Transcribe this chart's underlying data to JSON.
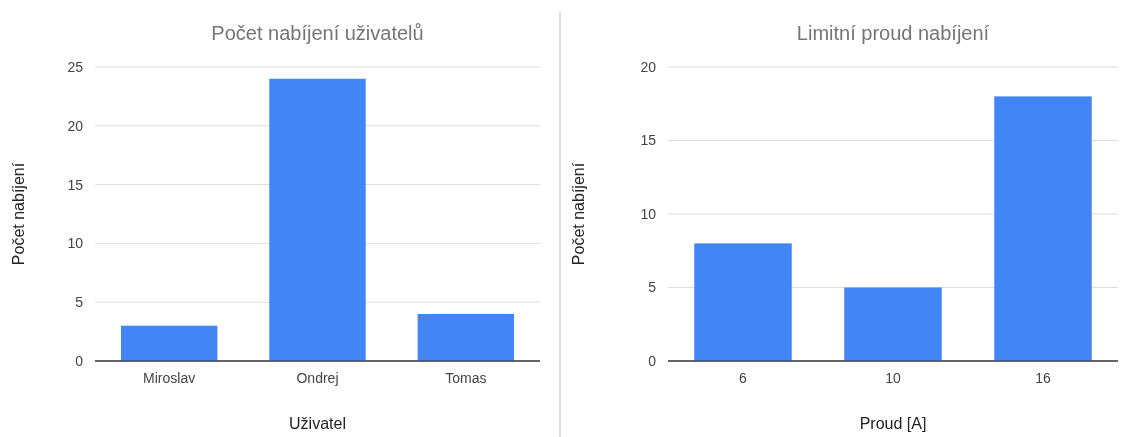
{
  "chart_data": [
    {
      "type": "bar",
      "title": "Počet nabíjení uživatelů",
      "xlabel": "Uživatel",
      "ylabel": "Počet nabíjení",
      "categories": [
        "Miroslav",
        "Ondrej",
        "Tomas"
      ],
      "values": [
        3,
        24,
        4
      ],
      "color": "#4285f4",
      "ylim": [
        0,
        25
      ],
      "yticks": [
        0,
        5,
        10,
        15,
        20,
        25
      ],
      "grid": "y"
    },
    {
      "type": "bar",
      "title": "Limitní proud nabíjení",
      "xlabel": "Proud [A]",
      "ylabel": "Počet nabíjení",
      "categories": [
        "6",
        "10",
        "16"
      ],
      "values": [
        8,
        5,
        18
      ],
      "color": "#4285f4",
      "ylim": [
        0,
        20
      ],
      "yticks": [
        0,
        5,
        10,
        15,
        20
      ],
      "grid": "y"
    }
  ]
}
